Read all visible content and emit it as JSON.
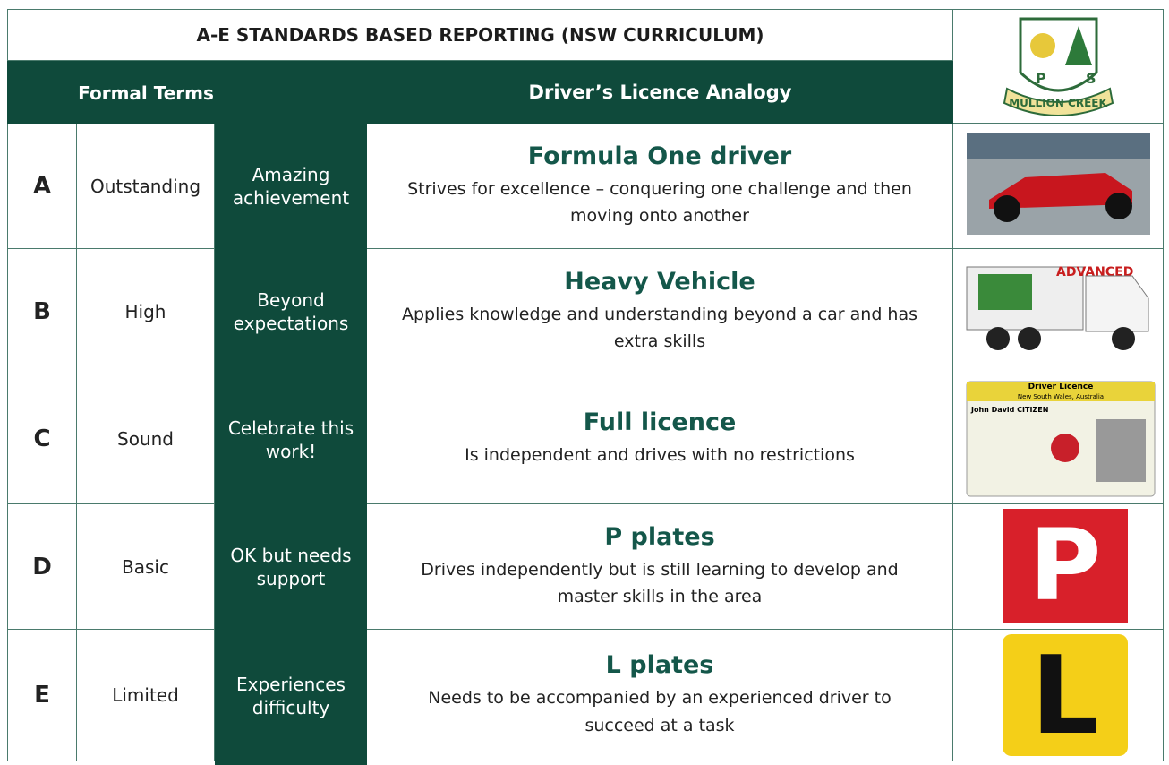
{
  "header": {
    "title": "A-E STANDARDS BASED REPORTING (NSW CURRICULUM)",
    "formal_terms": "Formal Terms",
    "analogy": "Driver’s Licence Analogy"
  },
  "logo": {
    "left": "P",
    "right": "S",
    "banner": "MULLION CREEK"
  },
  "rows": [
    {
      "grade": "A",
      "term": "Outstanding",
      "phrase": "Amazing achievement",
      "heading": "Formula One driver",
      "description": "Strives for excellence – conquering one challenge and then moving onto another"
    },
    {
      "grade": "B",
      "term": "High",
      "phrase": "Beyond expectations",
      "heading": "Heavy Vehicle",
      "description": "Applies knowledge and understanding beyond a car and has extra skills"
    },
    {
      "grade": "C",
      "term": "Sound",
      "phrase": "Celebrate this work!",
      "heading": "Full licence",
      "description": "Is independent and drives with no restrictions"
    },
    {
      "grade": "D",
      "term": "Basic",
      "phrase": "OK but needs support",
      "heading": "P plates",
      "description": "Drives independently but is still learning to develop and master skills in the area"
    },
    {
      "grade": "E",
      "term": "Limited",
      "phrase": "Experiences difficulty",
      "heading": "L plates",
      "description": "Needs to be accompanied by an experienced driver to succeed at a task"
    }
  ],
  "images": {
    "truck": "ADVANCED",
    "licence_title": "Driver Licence",
    "licence_state": "New South Wales, Australia",
    "licence_name": "John David CITIZEN",
    "p_plate": "P",
    "l_plate": "L"
  }
}
